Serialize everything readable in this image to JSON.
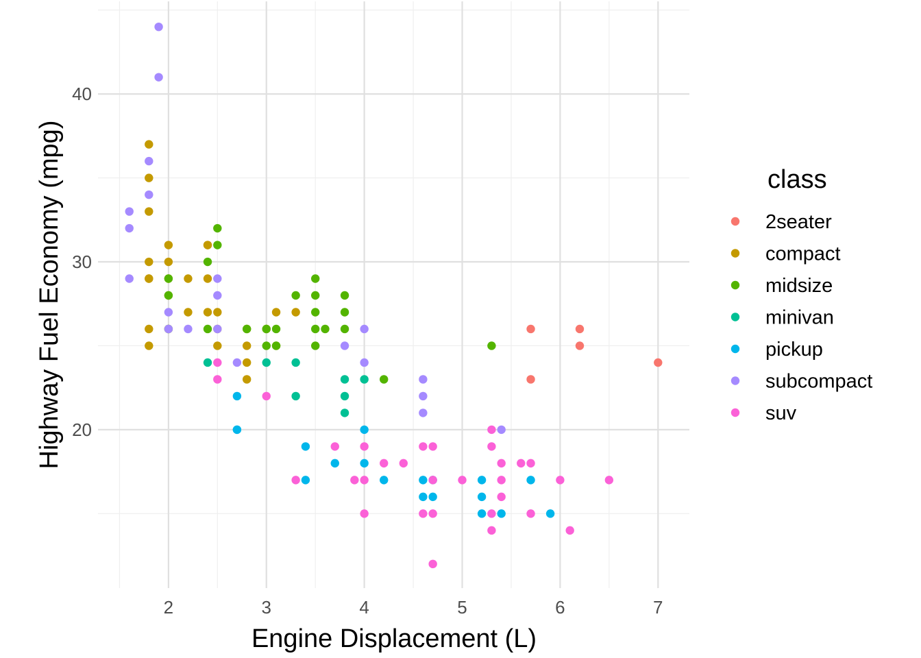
{
  "chart_data": {
    "type": "scatter",
    "title": "",
    "xlabel": "Engine Displacement (L)",
    "ylabel": "Highway Fuel Economy (mpg)",
    "xlim": [
      1.28,
      7.32
    ],
    "ylim": [
      10.4,
      45.6
    ],
    "xticks": [
      2,
      3,
      4,
      5,
      6,
      7
    ],
    "yticks": [
      20,
      30,
      40
    ],
    "xtick_labels": [
      "2",
      "3",
      "4",
      "5",
      "6",
      "7"
    ],
    "ytick_labels": [
      "20",
      "30",
      "40"
    ],
    "grid": true,
    "legend": {
      "title": "class",
      "position": "right"
    },
    "series": [
      {
        "name": "2seater",
        "color": "#F8766D",
        "points": [
          [
            5.7,
            26
          ],
          [
            5.7,
            23
          ],
          [
            6.2,
            26
          ],
          [
            6.2,
            25
          ],
          [
            7.0,
            24
          ]
        ]
      },
      {
        "name": "compact",
        "color": "#C49A00",
        "points": [
          [
            1.8,
            29
          ],
          [
            1.8,
            29
          ],
          [
            2.0,
            31
          ],
          [
            2.0,
            30
          ],
          [
            2.8,
            26
          ],
          [
            2.8,
            25
          ],
          [
            3.1,
            27
          ],
          [
            1.8,
            26
          ],
          [
            1.8,
            25
          ],
          [
            2.0,
            28
          ],
          [
            2.0,
            29
          ],
          [
            2.8,
            24
          ],
          [
            3.1,
            25
          ],
          [
            2.2,
            29
          ],
          [
            2.2,
            27
          ],
          [
            2.4,
            31
          ],
          [
            2.4,
            31
          ],
          [
            2.4,
            27
          ],
          [
            2.5,
            27
          ],
          [
            2.5,
            25
          ],
          [
            2.8,
            23
          ],
          [
            3.0,
            26
          ],
          [
            1.8,
            37
          ],
          [
            1.8,
            35
          ],
          [
            1.8,
            33
          ],
          [
            1.8,
            30
          ],
          [
            2.0,
            26
          ],
          [
            2.4,
            29
          ],
          [
            3.3,
            27
          ],
          [
            2.5,
            26
          ]
        ]
      },
      {
        "name": "midsize",
        "color": "#53B400",
        "points": [
          [
            2.0,
            29
          ],
          [
            2.4,
            30
          ],
          [
            2.4,
            26
          ],
          [
            2.5,
            32
          ],
          [
            2.5,
            31
          ],
          [
            2.8,
            26
          ],
          [
            3.0,
            25
          ],
          [
            3.0,
            26
          ],
          [
            3.1,
            26
          ],
          [
            3.1,
            25
          ],
          [
            3.3,
            28
          ],
          [
            3.5,
            29
          ],
          [
            3.5,
            28
          ],
          [
            3.5,
            27
          ],
          [
            3.5,
            26
          ],
          [
            3.5,
            25
          ],
          [
            3.6,
            26
          ],
          [
            3.8,
            28
          ],
          [
            3.8,
            27
          ],
          [
            3.8,
            26
          ],
          [
            4.2,
            23
          ],
          [
            5.3,
            25
          ],
          [
            2.0,
            28
          ],
          [
            2.0,
            26
          ]
        ]
      },
      {
        "name": "minivan",
        "color": "#00C094",
        "points": [
          [
            2.4,
            24
          ],
          [
            3.0,
            24
          ],
          [
            3.3,
            22
          ],
          [
            3.3,
            24
          ],
          [
            3.8,
            22
          ],
          [
            3.8,
            21
          ],
          [
            3.8,
            23
          ],
          [
            4.0,
            23
          ]
        ]
      },
      {
        "name": "pickup",
        "color": "#00B6EB",
        "points": [
          [
            2.7,
            20
          ],
          [
            2.7,
            22
          ],
          [
            3.4,
            19
          ],
          [
            3.4,
            17
          ],
          [
            3.7,
            18
          ],
          [
            4.0,
            20
          ],
          [
            4.0,
            18
          ],
          [
            4.2,
            17
          ],
          [
            4.6,
            17
          ],
          [
            4.6,
            16
          ],
          [
            4.7,
            17
          ],
          [
            4.7,
            16
          ],
          [
            5.2,
            17
          ],
          [
            5.2,
            16
          ],
          [
            5.2,
            15
          ],
          [
            5.4,
            15
          ],
          [
            5.7,
            17
          ],
          [
            5.9,
            15
          ],
          [
            2.7,
            20
          ]
        ]
      },
      {
        "name": "subcompact",
        "color": "#A58AFF",
        "points": [
          [
            1.9,
            44
          ],
          [
            1.9,
            41
          ],
          [
            1.8,
            36
          ],
          [
            1.8,
            34
          ],
          [
            1.6,
            33
          ],
          [
            1.6,
            32
          ],
          [
            1.6,
            29
          ],
          [
            2.0,
            27
          ],
          [
            2.0,
            26
          ],
          [
            2.2,
            26
          ],
          [
            2.5,
            29
          ],
          [
            2.5,
            28
          ],
          [
            2.5,
            26
          ],
          [
            2.7,
            24
          ],
          [
            3.8,
            25
          ],
          [
            4.0,
            26
          ],
          [
            4.0,
            24
          ],
          [
            4.6,
            23
          ],
          [
            4.6,
            22
          ],
          [
            4.6,
            21
          ],
          [
            5.4,
            20
          ]
        ]
      },
      {
        "name": "suv",
        "color": "#FB61D7",
        "points": [
          [
            2.5,
            24
          ],
          [
            2.5,
            23
          ],
          [
            3.0,
            22
          ],
          [
            3.3,
            17
          ],
          [
            3.7,
            19
          ],
          [
            3.9,
            17
          ],
          [
            4.0,
            19
          ],
          [
            4.0,
            17
          ],
          [
            4.0,
            15
          ],
          [
            4.2,
            18
          ],
          [
            4.4,
            18
          ],
          [
            4.6,
            19
          ],
          [
            4.6,
            15
          ],
          [
            4.7,
            19
          ],
          [
            4.7,
            17
          ],
          [
            4.7,
            15
          ],
          [
            4.7,
            12
          ],
          [
            5.0,
            17
          ],
          [
            5.3,
            20
          ],
          [
            5.3,
            19
          ],
          [
            5.3,
            15
          ],
          [
            5.3,
            14
          ],
          [
            5.4,
            18
          ],
          [
            5.4,
            17
          ],
          [
            5.4,
            16
          ],
          [
            5.6,
            18
          ],
          [
            5.7,
            18
          ],
          [
            5.7,
            15
          ],
          [
            6.0,
            17
          ],
          [
            6.1,
            14
          ],
          [
            6.5,
            17
          ]
        ]
      }
    ]
  }
}
